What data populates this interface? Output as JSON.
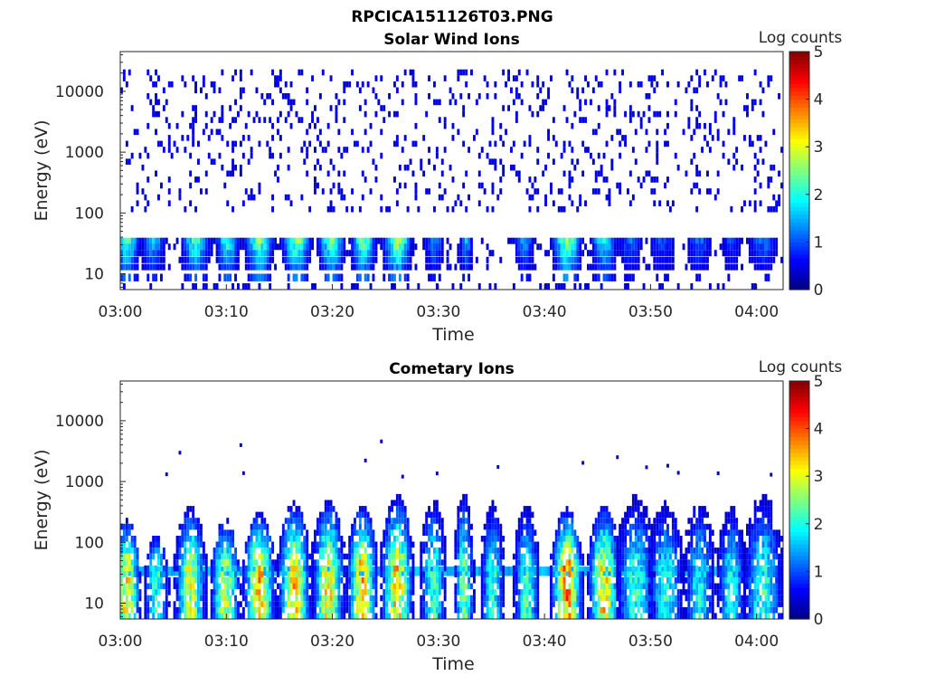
{
  "figure_title": "RPCICA151126T03.PNG",
  "chart_data": [
    {
      "type": "heatmap",
      "title": "Solar Wind Ions",
      "xlabel": "Time",
      "ylabel": "Energy (eV)",
      "x_ticks": [
        "03:00",
        "03:10",
        "03:20",
        "03:30",
        "03:40",
        "03:50",
        "04:00"
      ],
      "x_tick_minutes": [
        0,
        10,
        20,
        30,
        40,
        50,
        60
      ],
      "xlim_minutes": [
        0,
        62.5
      ],
      "y_scale": "log",
      "y_ticks": [
        "10",
        "100",
        "1000",
        "10000"
      ],
      "y_tick_values": [
        10,
        100,
        1000,
        10000
      ],
      "ylim": [
        5.5,
        45000
      ],
      "colorbar": {
        "label": "Log counts",
        "min": 0,
        "max": 5,
        "ticks": [
          "0",
          "1",
          "2",
          "3",
          "4",
          "5"
        ],
        "colormap": "jet"
      },
      "band_energies_eV": [
        35,
        28,
        22,
        17,
        13
      ],
      "sparse_noise": "scattered counts ~0.5 log between 100 and 20000 eV",
      "bursts": [
        {
          "t_min": 0.5,
          "width_min": 1.5,
          "peak_log": 2.4
        },
        {
          "t_min": 3.0,
          "width_min": 1.5,
          "peak_log": 1.6
        },
        {
          "t_min": 7.0,
          "width_min": 1.6,
          "peak_log": 2.3
        },
        {
          "t_min": 10.0,
          "width_min": 1.4,
          "peak_log": 2.2
        },
        {
          "t_min": 13.0,
          "width_min": 1.6,
          "peak_log": 2.6
        },
        {
          "t_min": 16.5,
          "width_min": 1.6,
          "peak_log": 2.7
        },
        {
          "t_min": 19.8,
          "width_min": 1.5,
          "peak_log": 2.5
        },
        {
          "t_min": 22.8,
          "width_min": 1.4,
          "peak_log": 2.6
        },
        {
          "t_min": 26.0,
          "width_min": 1.6,
          "peak_log": 2.8
        },
        {
          "t_min": 29.5,
          "width_min": 1.2,
          "peak_log": 1.4
        },
        {
          "t_min": 32.5,
          "width_min": 0.8,
          "peak_log": 1.6
        },
        {
          "t_min": 38.0,
          "width_min": 1.2,
          "peak_log": 1.5
        },
        {
          "t_min": 42.0,
          "width_min": 1.6,
          "peak_log": 2.8
        },
        {
          "t_min": 45.5,
          "width_min": 1.5,
          "peak_log": 2.1
        },
        {
          "t_min": 48.0,
          "width_min": 1.6,
          "peak_log": 1.2
        },
        {
          "t_min": 51.0,
          "width_min": 1.8,
          "peak_log": 1.1
        },
        {
          "t_min": 54.5,
          "width_min": 1.6,
          "peak_log": 1.2
        },
        {
          "t_min": 57.5,
          "width_min": 1.4,
          "peak_log": 1.0
        },
        {
          "t_min": 60.5,
          "width_min": 1.8,
          "peak_log": 1.3
        }
      ]
    },
    {
      "type": "heatmap",
      "title": "Cometary Ions",
      "xlabel": "Time",
      "ylabel": "Energy (eV)",
      "x_ticks": [
        "03:00",
        "03:10",
        "03:20",
        "03:30",
        "03:40",
        "03:50",
        "04:00"
      ],
      "x_tick_minutes": [
        0,
        10,
        20,
        30,
        40,
        50,
        60
      ],
      "xlim_minutes": [
        0,
        62.5
      ],
      "y_scale": "log",
      "y_ticks": [
        "10",
        "100",
        "1000",
        "10000"
      ],
      "y_tick_values": [
        10,
        100,
        1000,
        10000
      ],
      "ylim": [
        5.5,
        45000
      ],
      "colorbar": {
        "label": "Log counts",
        "min": 0,
        "max": 5,
        "ticks": [
          "0",
          "1",
          "2",
          "3",
          "4",
          "5"
        ],
        "colormap": "jet"
      },
      "baseline_band": {
        "energy_eV": [
          28,
          40
        ],
        "log": 1.5
      },
      "bursts": [
        {
          "t_min": 0.5,
          "width_min": 1.4,
          "peak_log": 3.3,
          "top_eV": 200
        },
        {
          "t_min": 3.3,
          "width_min": 1.3,
          "peak_log": 2.2,
          "top_eV": 120
        },
        {
          "t_min": 6.5,
          "width_min": 1.6,
          "peak_log": 3.0,
          "top_eV": 350
        },
        {
          "t_min": 9.8,
          "width_min": 1.5,
          "peak_log": 3.0,
          "top_eV": 200
        },
        {
          "t_min": 13.0,
          "width_min": 1.6,
          "peak_log": 3.6,
          "top_eV": 260
        },
        {
          "t_min": 16.3,
          "width_min": 1.6,
          "peak_log": 3.5,
          "top_eV": 380
        },
        {
          "t_min": 19.5,
          "width_min": 1.6,
          "peak_log": 3.4,
          "top_eV": 450
        },
        {
          "t_min": 22.7,
          "width_min": 1.5,
          "peak_log": 3.6,
          "top_eV": 350
        },
        {
          "t_min": 26.0,
          "width_min": 1.6,
          "peak_log": 3.5,
          "top_eV": 500
        },
        {
          "t_min": 29.4,
          "width_min": 1.3,
          "peak_log": 2.4,
          "top_eV": 450
        },
        {
          "t_min": 32.3,
          "width_min": 1.0,
          "peak_log": 2.6,
          "top_eV": 600
        },
        {
          "t_min": 35.0,
          "width_min": 1.2,
          "peak_log": 2.2,
          "top_eV": 400
        },
        {
          "t_min": 38.2,
          "width_min": 1.3,
          "peak_log": 2.3,
          "top_eV": 350
        },
        {
          "t_min": 42.0,
          "width_min": 1.6,
          "peak_log": 3.8,
          "top_eV": 300
        },
        {
          "t_min": 45.5,
          "width_min": 1.6,
          "peak_log": 3.4,
          "top_eV": 350
        },
        {
          "t_min": 48.5,
          "width_min": 2.0,
          "peak_log": 2.2,
          "top_eV": 500
        },
        {
          "t_min": 51.3,
          "width_min": 1.8,
          "peak_log": 2.1,
          "top_eV": 400
        },
        {
          "t_min": 54.5,
          "width_min": 1.6,
          "peak_log": 2.0,
          "top_eV": 450
        },
        {
          "t_min": 57.5,
          "width_min": 1.5,
          "peak_log": 2.0,
          "top_eV": 350
        },
        {
          "t_min": 60.5,
          "width_min": 2.0,
          "peak_log": 2.2,
          "top_eV": 500
        }
      ]
    }
  ]
}
